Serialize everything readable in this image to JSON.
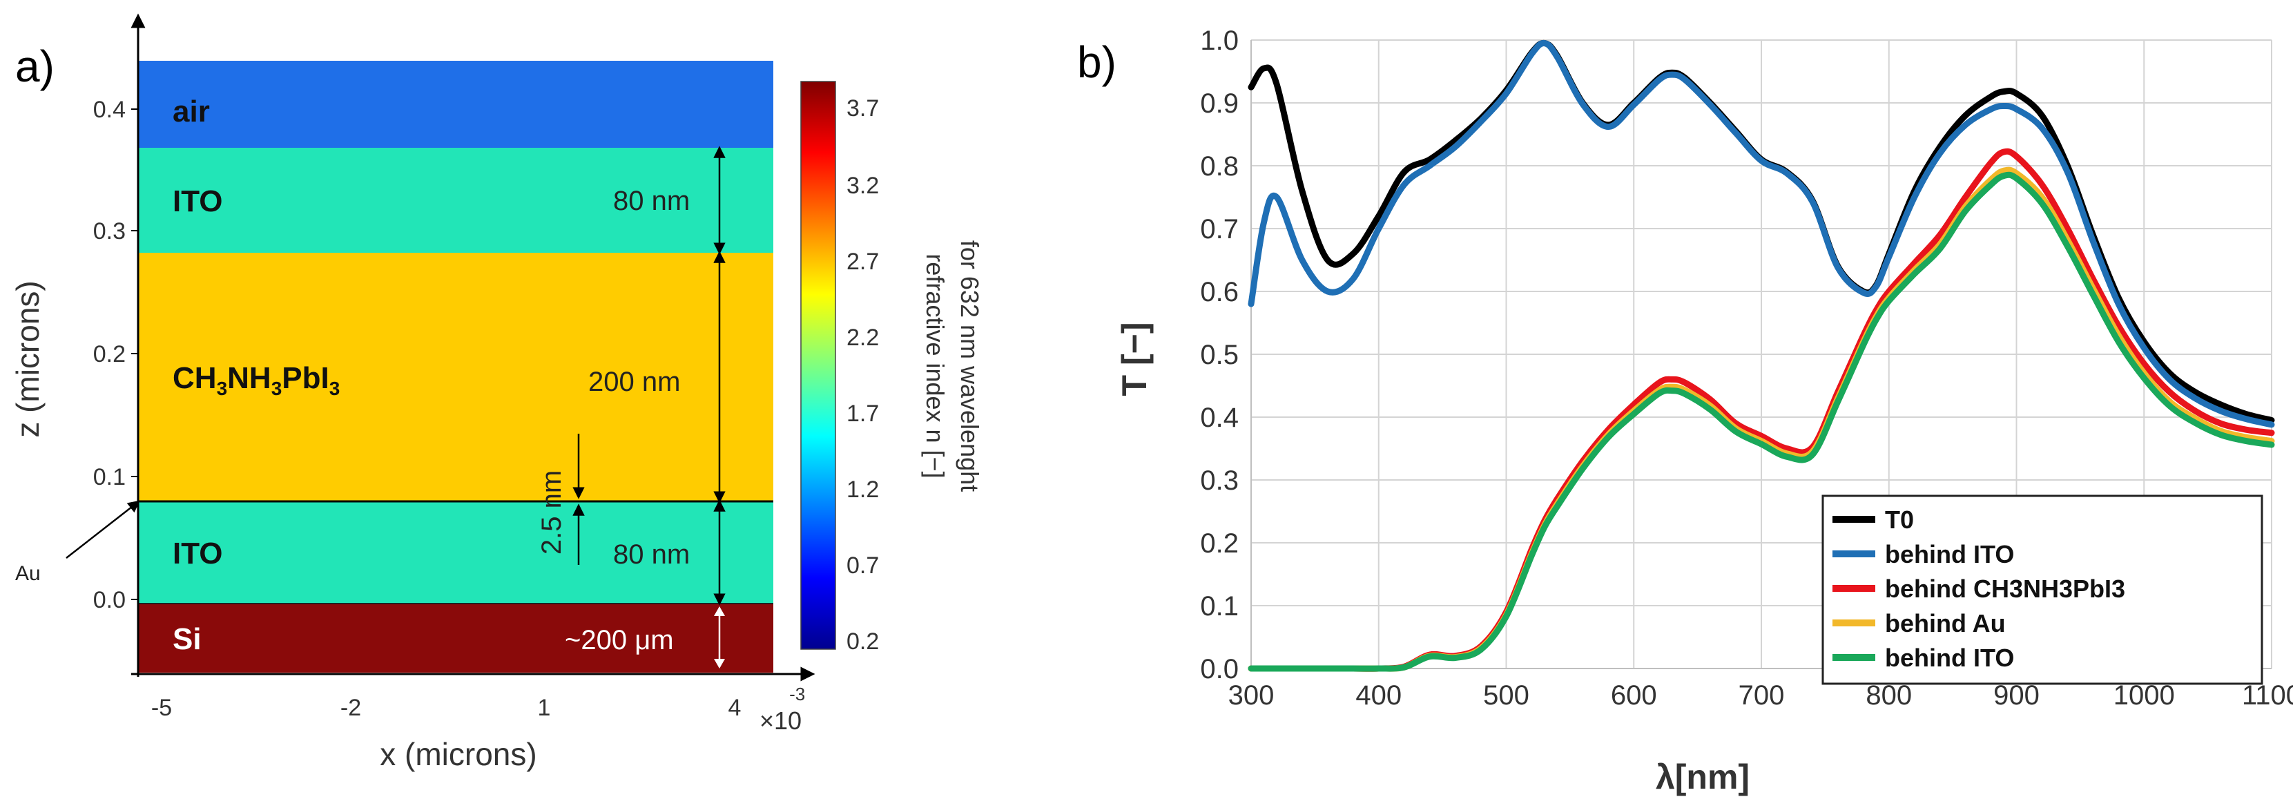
{
  "panel_a": {
    "label": "a)",
    "layers": [
      {
        "name": "air",
        "color": "#1f6fe8"
      },
      {
        "name": "ITO",
        "color": "#22e5b7"
      },
      {
        "name": "CH3NH3PbI3",
        "color": "#ffcc00"
      },
      {
        "name": "ITO",
        "color": "#22e5b7"
      },
      {
        "name": "Si",
        "color": "#8a0a0a"
      }
    ],
    "layer_label_parts": {
      "ch": "CH",
      "sub3": "3",
      "nh": "NH",
      "pbi": "PbI"
    },
    "thickness_labels": [
      "80 nm",
      "200 nm",
      "80 nm",
      "~200 μm"
    ],
    "au_thickness": "2.5 nm",
    "au_label": "Au",
    "y_axis_label": "z (microns)",
    "y_ticks": [
      "0.4",
      "0.3",
      "0.2",
      "0.1",
      "0.0"
    ],
    "x_axis_label": "x (microns)",
    "x_ticks": [
      "-5",
      "-2",
      "1",
      "4"
    ],
    "x_multiplier_base": "×10",
    "x_multiplier_exp": "-3",
    "colorbar": {
      "ticks": [
        "3.7",
        "3.2",
        "2.7",
        "2.2",
        "1.7",
        "1.2",
        "0.7",
        "0.2"
      ],
      "label_line1": "refractive index n [−]",
      "label_line2": "for 632 nm wavelenght"
    }
  },
  "panel_b": {
    "label": "b)"
  },
  "chart_data": {
    "type": "line",
    "xlabel": "λ[nm]",
    "ylabel": "T [−]",
    "xlim": [
      300,
      1100
    ],
    "ylim": [
      0,
      1
    ],
    "x_ticks": [
      "300",
      "400",
      "500",
      "600",
      "700",
      "800",
      "900",
      "1000",
      "1100"
    ],
    "y_ticks": [
      "0.0",
      "0.1",
      "0.2",
      "0.3",
      "0.4",
      "0.5",
      "0.6",
      "0.7",
      "0.8",
      "0.9",
      "1.0"
    ],
    "grid": true,
    "legend_position": "bottom-right",
    "x": [
      300,
      310,
      320,
      340,
      360,
      380,
      400,
      420,
      440,
      460,
      480,
      500,
      520,
      530,
      540,
      560,
      580,
      600,
      620,
      630,
      640,
      660,
      680,
      700,
      720,
      740,
      760,
      780,
      790,
      800,
      820,
      840,
      860,
      880,
      890,
      900,
      920,
      940,
      960,
      980,
      1000,
      1020,
      1040,
      1060,
      1080,
      1100
    ],
    "series": [
      {
        "name": "T0",
        "color": "#000000",
        "values": [
          0.925,
          0.955,
          0.93,
          0.76,
          0.65,
          0.66,
          0.72,
          0.79,
          0.81,
          0.84,
          0.875,
          0.92,
          0.98,
          0.995,
          0.975,
          0.9,
          0.865,
          0.9,
          0.94,
          0.948,
          0.94,
          0.9,
          0.855,
          0.81,
          0.79,
          0.745,
          0.64,
          0.6,
          0.61,
          0.66,
          0.76,
          0.83,
          0.88,
          0.91,
          0.918,
          0.915,
          0.88,
          0.8,
          0.69,
          0.59,
          0.52,
          0.47,
          0.44,
          0.42,
          0.405,
          0.395
        ]
      },
      {
        "name": "behind ITO",
        "color": "#1f6fb5",
        "values": [
          0.58,
          0.71,
          0.75,
          0.65,
          0.6,
          0.62,
          0.7,
          0.77,
          0.8,
          0.83,
          0.87,
          0.915,
          0.978,
          0.995,
          0.973,
          0.898,
          0.862,
          0.897,
          0.937,
          0.945,
          0.937,
          0.897,
          0.852,
          0.808,
          0.788,
          0.743,
          0.638,
          0.598,
          0.608,
          0.655,
          0.75,
          0.82,
          0.865,
          0.89,
          0.895,
          0.89,
          0.86,
          0.79,
          0.68,
          0.58,
          0.51,
          0.46,
          0.43,
          0.41,
          0.397,
          0.388
        ]
      },
      {
        "name": "behind CH3NH3PbI3",
        "color": "#e8141c",
        "values": [
          0.0,
          0.0,
          0.0,
          0.0,
          0.0,
          0.0,
          0.0,
          0.003,
          0.022,
          0.02,
          0.035,
          0.09,
          0.19,
          0.235,
          0.27,
          0.33,
          0.38,
          0.42,
          0.455,
          0.46,
          0.455,
          0.428,
          0.39,
          0.37,
          0.35,
          0.352,
          0.44,
          0.53,
          0.57,
          0.6,
          0.645,
          0.69,
          0.75,
          0.805,
          0.822,
          0.815,
          0.77,
          0.7,
          0.62,
          0.545,
          0.485,
          0.44,
          0.41,
          0.39,
          0.38,
          0.375
        ]
      },
      {
        "name": "behind Au",
        "color": "#f2b82a",
        "values": [
          0.0,
          0.0,
          0.0,
          0.0,
          0.0,
          0.0,
          0.0,
          0.002,
          0.02,
          0.018,
          0.032,
          0.085,
          0.183,
          0.228,
          0.262,
          0.322,
          0.372,
          0.41,
          0.443,
          0.448,
          0.443,
          0.418,
          0.382,
          0.362,
          0.342,
          0.345,
          0.43,
          0.52,
          0.56,
          0.59,
          0.634,
          0.675,
          0.735,
          0.778,
          0.792,
          0.788,
          0.75,
          0.682,
          0.605,
          0.53,
          0.47,
          0.425,
          0.398,
          0.378,
          0.368,
          0.362
        ]
      },
      {
        "name": "behind ITO",
        "color": "#1aa85a",
        "values": [
          0.0,
          0.0,
          0.0,
          0.0,
          0.0,
          0.0,
          0.0,
          0.002,
          0.019,
          0.017,
          0.03,
          0.083,
          0.18,
          0.225,
          0.258,
          0.318,
          0.368,
          0.405,
          0.438,
          0.442,
          0.437,
          0.412,
          0.377,
          0.357,
          0.337,
          0.34,
          0.425,
          0.515,
          0.555,
          0.585,
          0.628,
          0.668,
          0.728,
          0.77,
          0.784,
          0.78,
          0.74,
          0.672,
          0.595,
          0.52,
          0.462,
          0.418,
          0.391,
          0.372,
          0.362,
          0.356
        ]
      }
    ]
  }
}
